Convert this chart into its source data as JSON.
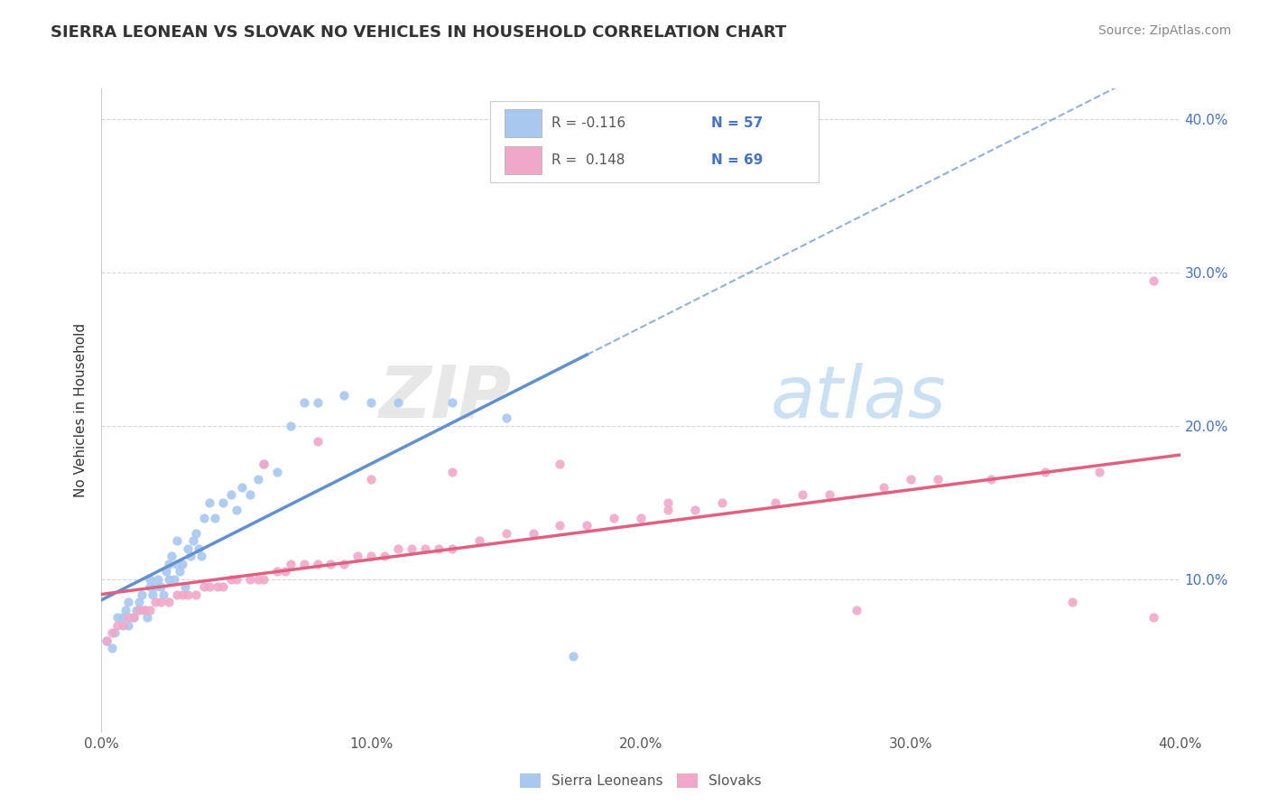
{
  "title": "SIERRA LEONEAN VS SLOVAK NO VEHICLES IN HOUSEHOLD CORRELATION CHART",
  "source": "Source: ZipAtlas.com",
  "ylabel": "No Vehicles in Household",
  "xlim": [
    0.0,
    0.4
  ],
  "ylim": [
    0.0,
    0.42
  ],
  "x_ticks": [
    0.0,
    0.1,
    0.2,
    0.3,
    0.4
  ],
  "y_ticks": [
    0.1,
    0.2,
    0.3,
    0.4
  ],
  "x_tick_labels": [
    "0.0%",
    "10.0%",
    "20.0%",
    "30.0%",
    "40.0%"
  ],
  "y_tick_labels_right": [
    "10.0%",
    "20.0%",
    "30.0%",
    "40.0%"
  ],
  "legend_bottom": [
    "Sierra Leoneans",
    "Slovaks"
  ],
  "color_blue": "#A8C8F0",
  "color_pink": "#F0A8C8",
  "color_blue_line": "#6090D0",
  "color_pink_line": "#E06080",
  "watermark_zip": "ZIP",
  "watermark_atlas": "atlas",
  "blue_scatter_x": [
    0.002,
    0.004,
    0.005,
    0.006,
    0.008,
    0.009,
    0.01,
    0.01,
    0.012,
    0.013,
    0.014,
    0.015,
    0.016,
    0.017,
    0.018,
    0.018,
    0.019,
    0.02,
    0.021,
    0.022,
    0.023,
    0.024,
    0.025,
    0.025,
    0.026,
    0.027,
    0.028,
    0.028,
    0.029,
    0.03,
    0.031,
    0.032,
    0.033,
    0.034,
    0.035,
    0.036,
    0.037,
    0.038,
    0.04,
    0.042,
    0.045,
    0.048,
    0.05,
    0.052,
    0.055,
    0.058,
    0.06,
    0.065,
    0.07,
    0.075,
    0.08,
    0.09,
    0.1,
    0.11,
    0.13,
    0.15,
    0.175
  ],
  "blue_scatter_y": [
    0.06,
    0.055,
    0.065,
    0.075,
    0.075,
    0.08,
    0.07,
    0.085,
    0.075,
    0.08,
    0.085,
    0.09,
    0.08,
    0.075,
    0.095,
    0.1,
    0.09,
    0.095,
    0.1,
    0.095,
    0.09,
    0.105,
    0.1,
    0.11,
    0.115,
    0.1,
    0.11,
    0.125,
    0.105,
    0.11,
    0.095,
    0.12,
    0.115,
    0.125,
    0.13,
    0.12,
    0.115,
    0.14,
    0.15,
    0.14,
    0.15,
    0.155,
    0.145,
    0.16,
    0.155,
    0.165,
    0.175,
    0.17,
    0.2,
    0.215,
    0.215,
    0.22,
    0.215,
    0.215,
    0.215,
    0.205,
    0.05
  ],
  "pink_scatter_x": [
    0.002,
    0.004,
    0.006,
    0.008,
    0.01,
    0.012,
    0.014,
    0.016,
    0.018,
    0.02,
    0.022,
    0.025,
    0.028,
    0.03,
    0.032,
    0.035,
    0.038,
    0.04,
    0.043,
    0.045,
    0.048,
    0.05,
    0.055,
    0.058,
    0.06,
    0.065,
    0.068,
    0.07,
    0.075,
    0.08,
    0.085,
    0.09,
    0.095,
    0.1,
    0.105,
    0.11,
    0.115,
    0.12,
    0.125,
    0.13,
    0.14,
    0.15,
    0.16,
    0.17,
    0.18,
    0.19,
    0.2,
    0.21,
    0.22,
    0.23,
    0.25,
    0.26,
    0.27,
    0.29,
    0.3,
    0.31,
    0.33,
    0.35,
    0.37,
    0.39,
    0.06,
    0.08,
    0.1,
    0.13,
    0.17,
    0.21,
    0.28,
    0.36,
    0.39
  ],
  "pink_scatter_y": [
    0.06,
    0.065,
    0.07,
    0.07,
    0.075,
    0.075,
    0.08,
    0.08,
    0.08,
    0.085,
    0.085,
    0.085,
    0.09,
    0.09,
    0.09,
    0.09,
    0.095,
    0.095,
    0.095,
    0.095,
    0.1,
    0.1,
    0.1,
    0.1,
    0.1,
    0.105,
    0.105,
    0.11,
    0.11,
    0.11,
    0.11,
    0.11,
    0.115,
    0.115,
    0.115,
    0.12,
    0.12,
    0.12,
    0.12,
    0.12,
    0.125,
    0.13,
    0.13,
    0.135,
    0.135,
    0.14,
    0.14,
    0.145,
    0.145,
    0.15,
    0.15,
    0.155,
    0.155,
    0.16,
    0.165,
    0.165,
    0.165,
    0.17,
    0.17,
    0.075,
    0.175,
    0.19,
    0.165,
    0.17,
    0.175,
    0.15,
    0.08,
    0.085,
    0.295
  ]
}
